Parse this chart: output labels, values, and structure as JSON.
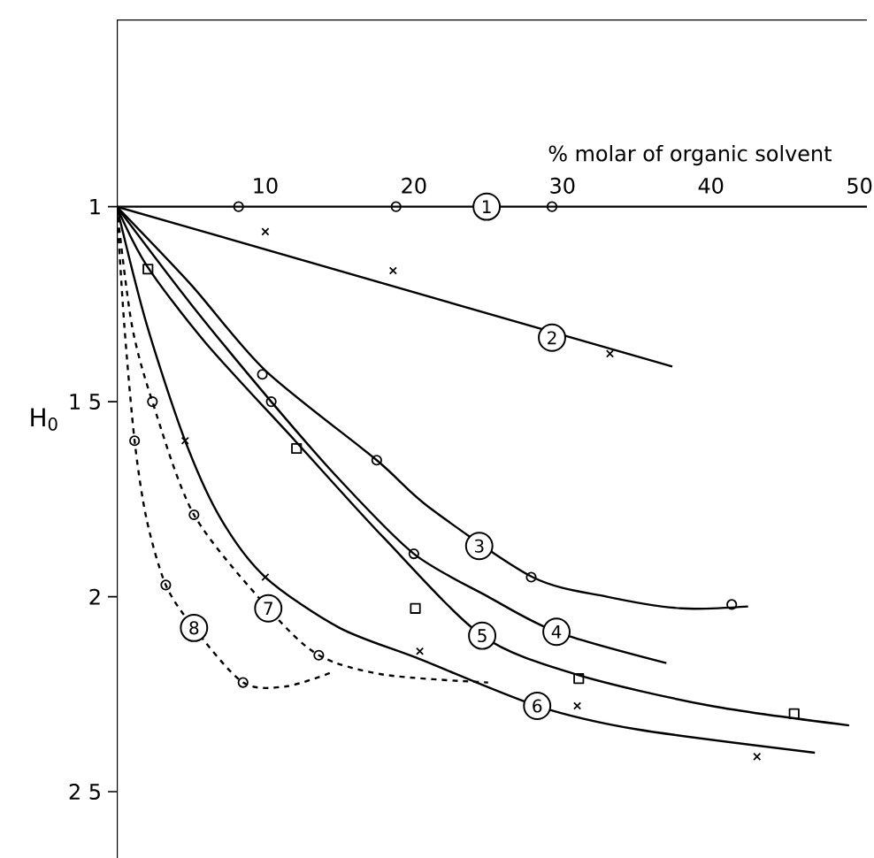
{
  "chart_data": {
    "type": "line",
    "xlabel": "% molar of organic solvent",
    "ylabel": "H$_{0}$",
    "xlim": [
      0,
      50.5
    ],
    "ylim": [
      2.67,
      0.52
    ],
    "xticks": [
      10,
      20,
      30,
      40,
      50
    ],
    "yticks": [
      1,
      {
        "value": 1.5,
        "label": "1 5"
      },
      2,
      {
        "value": 2.5,
        "label": "2 5"
      }
    ],
    "grid": false,
    "series": [
      {
        "type": "line",
        "color": "#000000",
        "marker": "none",
        "line_style": "solid",
        "x": [
          0,
          50.5
        ],
        "values": [
          1,
          1
        ]
      },
      {
        "type": "line",
        "color": "#000000",
        "marker": "none",
        "line_style": "solid",
        "x": [
          0,
          37.4
        ],
        "values": [
          1,
          1.41
        ]
      },
      {
        "type": "line",
        "color": "#000000",
        "marker": "none",
        "line_style": "solid",
        "x": [
          0,
          5,
          10,
          17.5,
          21,
          28,
          33,
          38,
          42.5
        ],
        "values": [
          1,
          1.2,
          1.42,
          1.65,
          1.77,
          1.95,
          2.0,
          2.03,
          2.025
        ]
      },
      {
        "type": "line",
        "color": "#000000",
        "marker": "none",
        "line_style": "solid",
        "x": [
          0,
          5,
          10.4,
          15,
          20,
          25,
          29.6,
          37
        ],
        "values": [
          1,
          1.25,
          1.5,
          1.7,
          1.89,
          2.0,
          2.09,
          2.17
        ]
      },
      {
        "type": "line",
        "color": "#000000",
        "marker": "none",
        "line_style": "solid",
        "x": [
          0,
          2,
          6,
          12,
          18,
          24.6,
          31,
          40,
          49.3
        ],
        "values": [
          1,
          1.15,
          1.35,
          1.6,
          1.85,
          2.1,
          2.2,
          2.28,
          2.33
        ]
      },
      {
        "type": "line",
        "color": "#000000",
        "marker": "none",
        "line_style": "solid",
        "x": [
          0,
          2,
          4.6,
          7,
          10,
          15,
          20.4,
          28.3,
          35,
          47
        ],
        "values": [
          1,
          1.3,
          1.6,
          1.8,
          1.95,
          2.08,
          2.16,
          2.28,
          2.34,
          2.4
        ]
      },
      {
        "type": "line",
        "color": "#000000",
        "marker": "none",
        "line_style": "dashed",
        "x": [
          0,
          1,
          2.4,
          5.2,
          10.2,
          13.6,
          18,
          25
        ],
        "values": [
          1,
          1.3,
          1.5,
          1.79,
          2.03,
          2.15,
          2.2,
          2.22
        ]
      },
      {
        "type": "line",
        "color": "#000000",
        "marker": "none",
        "line_style": "dashed",
        "x": [
          0,
          0.5,
          1.2,
          2,
          3.3,
          5.2,
          8.5,
          11.4,
          14.4
        ],
        "values": [
          1,
          1.3,
          1.6,
          1.8,
          1.97,
          2.08,
          2.22,
          2.23,
          2.195
        ]
      },
      {
        "type": "scatter",
        "color": "#000000",
        "marker": "circle",
        "x": [
          8.2,
          18.8,
          29.3
        ],
        "values": [
          1,
          1,
          1
        ]
      },
      {
        "type": "scatter",
        "color": "#000000",
        "marker": "cross",
        "x": [
          10,
          18.6,
          33.2
        ],
        "values": [
          1.064,
          1.164,
          1.377
        ]
      },
      {
        "type": "scatter",
        "color": "#000000",
        "marker": "circle",
        "x": [
          9.8,
          17.5,
          27.9,
          41.4
        ],
        "values": [
          1.43,
          1.65,
          1.95,
          2.02
        ]
      },
      {
        "type": "scatter",
        "color": "#000000",
        "marker": "circle",
        "x": [
          10.4,
          20
        ],
        "values": [
          1.5,
          1.89
        ]
      },
      {
        "type": "scatter",
        "color": "#000000",
        "marker": "square",
        "x": [
          2.1,
          12.1,
          20.1,
          31.1,
          45.6
        ],
        "values": [
          1.16,
          1.62,
          2.03,
          2.21,
          2.3
        ]
      },
      {
        "type": "scatter",
        "color": "#000000",
        "marker": "cross",
        "x": [
          4.6,
          10,
          20.4,
          31,
          43.1
        ],
        "values": [
          1.6,
          1.95,
          2.14,
          2.28,
          2.41
        ]
      },
      {
        "type": "scatter",
        "color": "#000000",
        "marker": "circle",
        "x": [
          2.4,
          5.2,
          13.6
        ],
        "values": [
          1.5,
          1.79,
          2.15
        ]
      },
      {
        "type": "scatter",
        "color": "#000000",
        "marker": "circle",
        "x": [
          1.2,
          3.3,
          8.5
        ],
        "values": [
          1.6,
          1.97,
          2.22
        ]
      }
    ],
    "annotations": [
      {
        "text": "1",
        "x": 24.9,
        "y": 1
      },
      {
        "text": "2",
        "x": 29.3,
        "y": 1.336
      },
      {
        "text": "3",
        "x": 24.4,
        "y": 1.87
      },
      {
        "text": "4",
        "x": 29.6,
        "y": 2.09
      },
      {
        "text": "5",
        "x": 24.6,
        "y": 2.1
      },
      {
        "text": "6",
        "x": 28.3,
        "y": 2.28
      },
      {
        "text": "7",
        "x": 10.2,
        "y": 2.03
      },
      {
        "text": "8",
        "x": 5.2,
        "y": 2.08
      }
    ]
  }
}
